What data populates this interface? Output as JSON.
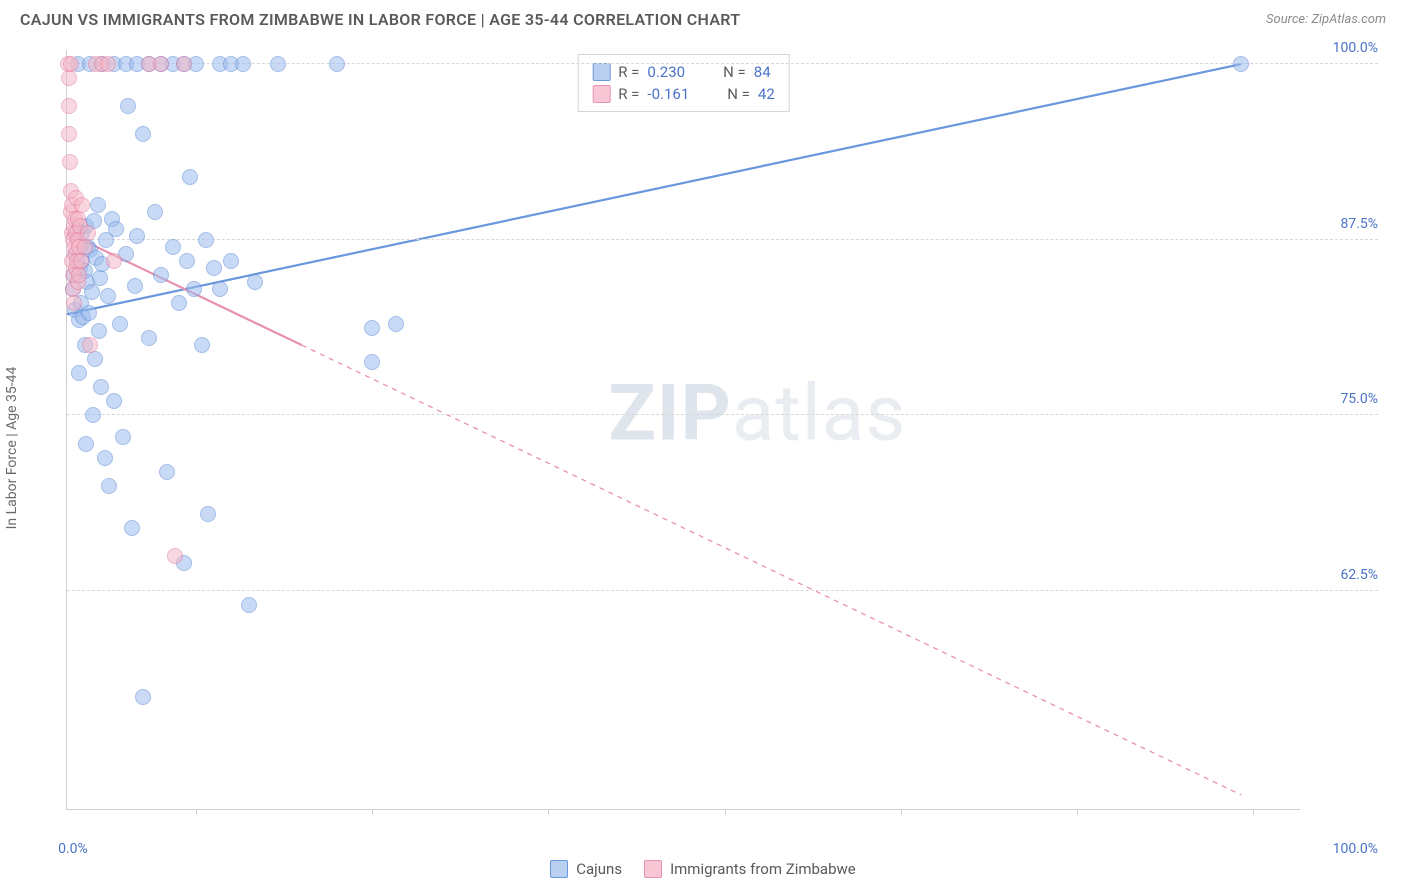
{
  "header": {
    "title": "CAJUN VS IMMIGRANTS FROM ZIMBABWE IN LABOR FORCE | AGE 35-44 CORRELATION CHART",
    "source_prefix": "Source: ",
    "source_name": "ZipAtlas.com"
  },
  "axes": {
    "y_label": "In Labor Force | Age 35-44",
    "y_min": 47.0,
    "y_max": 101.0,
    "y_ticks": [
      62.5,
      75.0,
      87.5,
      100.0
    ],
    "y_tick_labels": [
      "62.5%",
      "75.0%",
      "87.5%",
      "100.0%"
    ],
    "x_min": 0.0,
    "x_max": 105.0,
    "x_min_label": "0.0%",
    "x_max_label": "100.0%",
    "x_tick_positions": [
      11,
      26,
      41,
      56,
      71,
      86,
      101
    ]
  },
  "watermark": {
    "zip": "ZIP",
    "atlas": "atlas"
  },
  "style": {
    "series_colors": [
      "#6a97dd",
      "#e892ad"
    ],
    "series_fill": [
      "#b9d0f0",
      "#f7c7d5"
    ],
    "marker_size": 16,
    "marker_opacity": 0.55,
    "line_width_solid": 2.2,
    "line_width_dashed": 1.3,
    "grid_color": "#d8d8d8",
    "axis_color": "#cfcfcf",
    "background": "#ffffff",
    "text_color": "#5a5a5a",
    "value_color": "#4a72c8",
    "title_fontsize": 16,
    "label_fontsize": 14,
    "legend_fontsize": 15
  },
  "legend_top": {
    "rows": [
      {
        "swatch": "blue",
        "r_label": "R =",
        "r_value": "0.230",
        "n_label": "N =",
        "n_value": "84"
      },
      {
        "swatch": "pink",
        "r_label": "R =",
        "r_value": "-0.161",
        "n_label": "N =",
        "n_value": "42"
      }
    ]
  },
  "legend_bottom": {
    "items": [
      {
        "swatch": "blue",
        "label": "Cajuns"
      },
      {
        "swatch": "pink",
        "label": "Immigrants from Zimbabwe"
      }
    ]
  },
  "series": [
    {
      "name": "Cajuns",
      "type": "scatter",
      "color": "#6a97dd",
      "trend": {
        "x1": 0.0,
        "y1": 82.2,
        "x2": 100.0,
        "y2": 100.0,
        "solid_until_x": 100.0,
        "dash": "none"
      },
      "points": [
        [
          0.5,
          84.0
        ],
        [
          0.6,
          85.0
        ],
        [
          0.7,
          82.5
        ],
        [
          0.8,
          86.5
        ],
        [
          0.9,
          88.2
        ],
        [
          0.9,
          100.0
        ],
        [
          1.0,
          81.8
        ],
        [
          1.0,
          78.0
        ],
        [
          1.1,
          85.5
        ],
        [
          1.2,
          83.0
        ],
        [
          1.3,
          88.0
        ],
        [
          1.3,
          86.0
        ],
        [
          1.4,
          82.0
        ],
        [
          1.5,
          85.3
        ],
        [
          1.5,
          80.0
        ],
        [
          1.6,
          88.5
        ],
        [
          1.6,
          73.0
        ],
        [
          1.7,
          84.5
        ],
        [
          1.8,
          87.0
        ],
        [
          1.9,
          82.3
        ],
        [
          2.0,
          86.8
        ],
        [
          2.0,
          100.0
        ],
        [
          2.1,
          83.8
        ],
        [
          2.2,
          75.0
        ],
        [
          2.3,
          88.8
        ],
        [
          2.4,
          79.0
        ],
        [
          2.5,
          86.2
        ],
        [
          2.6,
          90.0
        ],
        [
          2.7,
          81.0
        ],
        [
          2.8,
          84.8
        ],
        [
          2.9,
          77.0
        ],
        [
          3.0,
          85.8
        ],
        [
          3.0,
          100.0
        ],
        [
          3.2,
          72.0
        ],
        [
          3.3,
          87.5
        ],
        [
          3.5,
          83.5
        ],
        [
          3.6,
          70.0
        ],
        [
          3.8,
          89.0
        ],
        [
          4.0,
          76.0
        ],
        [
          4.0,
          100.0
        ],
        [
          4.2,
          88.3
        ],
        [
          4.5,
          81.5
        ],
        [
          4.8,
          73.5
        ],
        [
          5.0,
          86.5
        ],
        [
          5.0,
          100.0
        ],
        [
          5.2,
          97.0
        ],
        [
          5.5,
          67.0
        ],
        [
          5.8,
          84.2
        ],
        [
          6.0,
          100.0
        ],
        [
          6.0,
          87.8
        ],
        [
          6.5,
          95.0
        ],
        [
          6.5,
          55.0
        ],
        [
          7.0,
          80.5
        ],
        [
          7.0,
          100.0
        ],
        [
          7.5,
          89.5
        ],
        [
          8.0,
          85.0
        ],
        [
          8.0,
          100.0
        ],
        [
          8.5,
          71.0
        ],
        [
          9.0,
          87.0
        ],
        [
          9.0,
          100.0
        ],
        [
          9.5,
          83.0
        ],
        [
          10.0,
          64.5
        ],
        [
          10.0,
          100.0
        ],
        [
          10.2,
          86.0
        ],
        [
          10.5,
          92.0
        ],
        [
          10.8,
          84.0
        ],
        [
          11.0,
          100.0
        ],
        [
          11.5,
          80.0
        ],
        [
          11.8,
          87.5
        ],
        [
          12.0,
          68.0
        ],
        [
          12.5,
          85.5
        ],
        [
          13.0,
          100.0
        ],
        [
          13.0,
          84.0
        ],
        [
          14.0,
          86.0
        ],
        [
          14.0,
          100.0
        ],
        [
          15.0,
          100.0
        ],
        [
          15.5,
          61.5
        ],
        [
          16.0,
          84.5
        ],
        [
          18.0,
          100.0
        ],
        [
          23.0,
          100.0
        ],
        [
          26.0,
          78.8
        ],
        [
          26.0,
          81.2
        ],
        [
          28.0,
          81.5
        ],
        [
          100.0,
          100.0
        ]
      ]
    },
    {
      "name": "Immigrants from Zimbabwe",
      "type": "scatter",
      "color": "#e892ad",
      "trend": {
        "x1": 0.0,
        "y1": 88.0,
        "x2": 100.0,
        "y2": 48.0,
        "solid_until_x": 20.0,
        "dash": "5,5"
      },
      "points": [
        [
          0.1,
          100.0
        ],
        [
          0.15,
          99.0
        ],
        [
          0.2,
          97.0
        ],
        [
          0.2,
          95.0
        ],
        [
          0.25,
          93.0
        ],
        [
          0.3,
          91.0
        ],
        [
          0.3,
          100.0
        ],
        [
          0.35,
          89.5
        ],
        [
          0.4,
          88.0
        ],
        [
          0.4,
          86.0
        ],
        [
          0.45,
          90.0
        ],
        [
          0.5,
          87.5
        ],
        [
          0.5,
          85.0
        ],
        [
          0.55,
          84.0
        ],
        [
          0.6,
          88.5
        ],
        [
          0.6,
          83.0
        ],
        [
          0.65,
          86.5
        ],
        [
          0.7,
          89.0
        ],
        [
          0.7,
          87.0
        ],
        [
          0.75,
          85.5
        ],
        [
          0.8,
          88.0
        ],
        [
          0.8,
          90.5
        ],
        [
          0.85,
          86.0
        ],
        [
          0.9,
          87.5
        ],
        [
          0.9,
          84.5
        ],
        [
          0.95,
          89.0
        ],
        [
          1.0,
          87.0
        ],
        [
          1.0,
          85.0
        ],
        [
          1.1,
          88.5
        ],
        [
          1.2,
          86.0
        ],
        [
          1.3,
          90.0
        ],
        [
          1.5,
          87.0
        ],
        [
          1.8,
          88.0
        ],
        [
          2.0,
          80.0
        ],
        [
          2.5,
          100.0
        ],
        [
          3.0,
          100.0
        ],
        [
          3.5,
          100.0
        ],
        [
          4.0,
          86.0
        ],
        [
          7.0,
          100.0
        ],
        [
          8.0,
          100.0
        ],
        [
          9.2,
          65.0
        ],
        [
          10.0,
          100.0
        ]
      ]
    }
  ]
}
